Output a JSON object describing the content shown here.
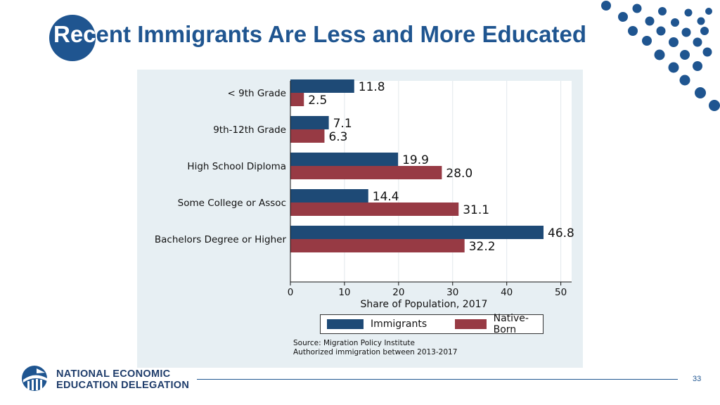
{
  "slide": {
    "title_highlight": "Rec",
    "title_rest": "ent Immigrants Are Less and More Educated",
    "page_number": "33"
  },
  "footer": {
    "org_line1": "NATIONAL ECONOMIC",
    "org_line2": "EDUCATION DELEGATION"
  },
  "colors": {
    "brand_blue": "#1f5590",
    "immigrants": "#1e4a76",
    "native_born": "#973a44",
    "panel_bg": "#e7eff3"
  },
  "chart_data": {
    "type": "bar",
    "orientation": "horizontal",
    "title": "",
    "xlabel": "Share of Population, 2017",
    "ylabel": "",
    "xlim": [
      0,
      52
    ],
    "xticks": [
      "0",
      "10",
      "20",
      "30",
      "40",
      "50"
    ],
    "grid": true,
    "legend_placement": "bottom",
    "categories": [
      "< 9th Grade",
      "9th-12th Grade",
      "High School Diploma",
      "Some College or Assoc",
      "Bachelors Degree or Higher"
    ],
    "series": [
      {
        "name": "Immigrants",
        "values": [
          11.8,
          7.1,
          19.9,
          14.4,
          46.8
        ],
        "labels": [
          "11.8",
          "7.1",
          "19.9",
          "14.4",
          "46.8"
        ]
      },
      {
        "name": "Native-Born",
        "values": [
          2.5,
          6.3,
          28.0,
          31.1,
          32.2
        ],
        "labels": [
          "2.5",
          "6.3",
          "28.0",
          "31.1",
          "32.2"
        ]
      }
    ],
    "notes": [
      "Source: Migration Policy Institute",
      "Authorized immigration between 2013-2017"
    ]
  }
}
